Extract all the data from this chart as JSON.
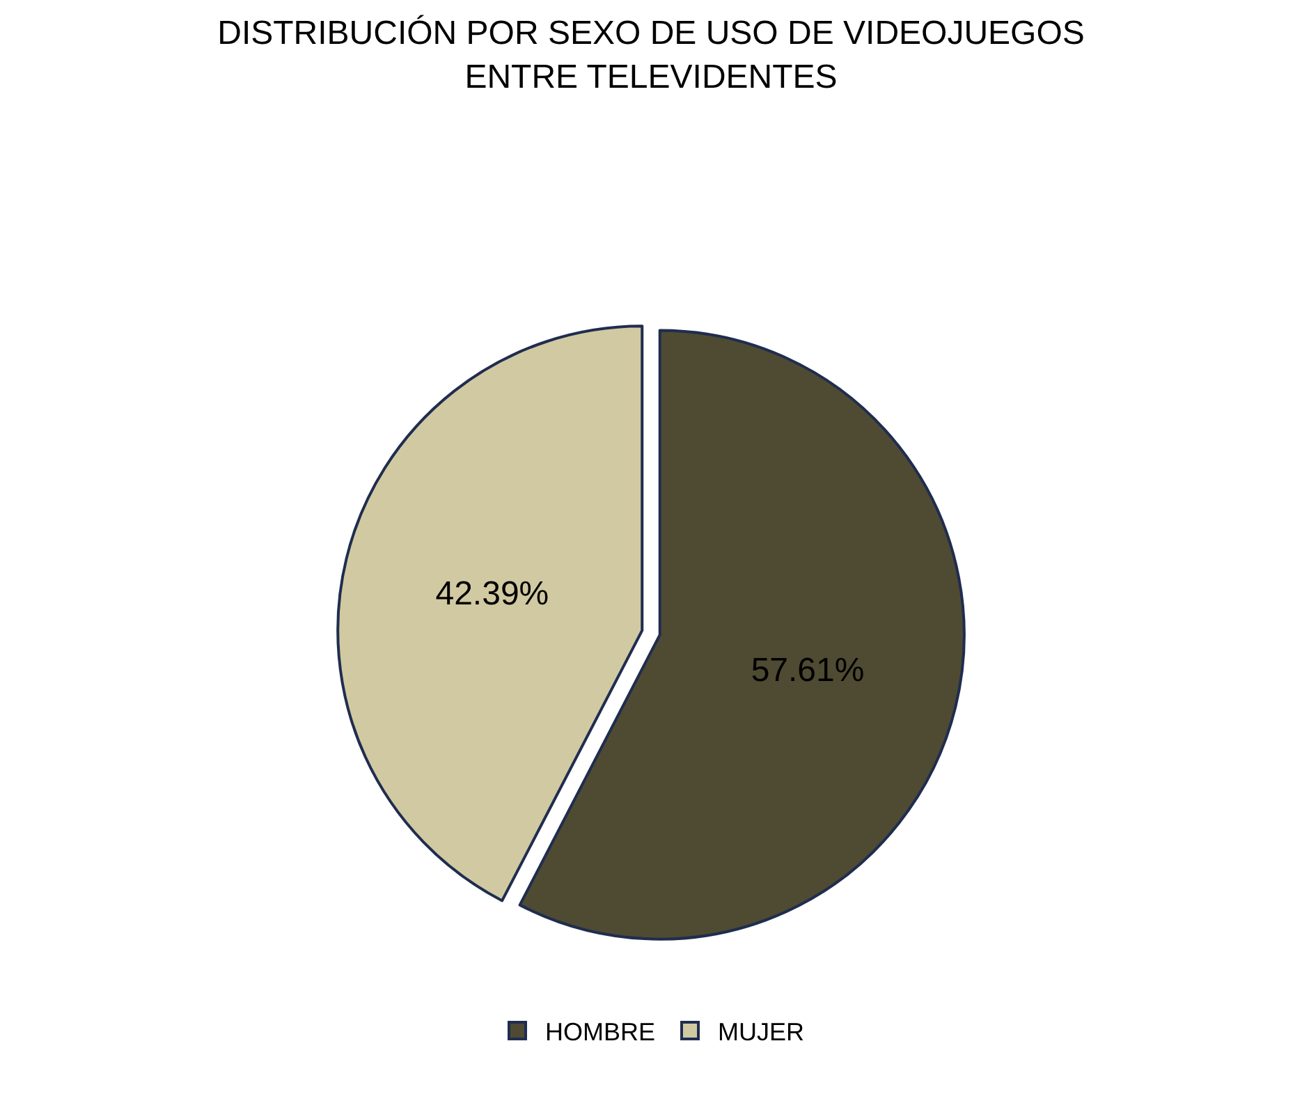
{
  "chart_data": {
    "type": "pie",
    "title": "DISTRIBUCIÓN POR SEXO DE USO DE VIDEOJUEGOS\nENTRE TELEVIDENTES",
    "categories": [
      "HOMBRE",
      "MUJER"
    ],
    "values": [
      57.61,
      42.39
    ],
    "colors": [
      "#4f4a32",
      "#d1c9a1"
    ],
    "value_labels": [
      "57.61%",
      "42.39%"
    ],
    "legend": "bottom"
  }
}
